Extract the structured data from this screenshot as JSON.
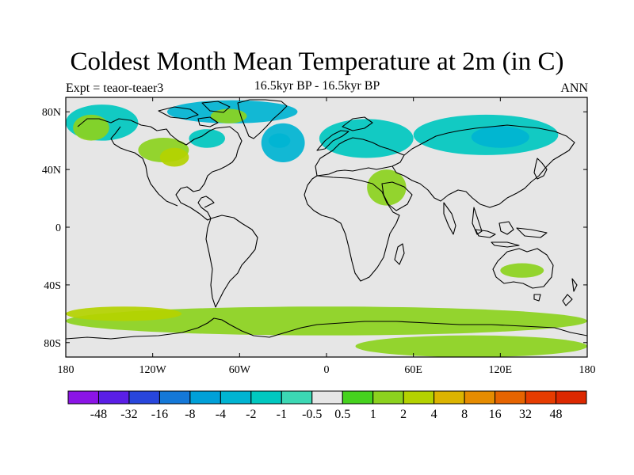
{
  "title": "Coldest Month Mean Temperature at 2m (in C)",
  "subtitle": "16.5kyr BP - 16.5kyr BP",
  "left_label": "Expt = teaor-teaer3",
  "right_label": "ANN",
  "map": {
    "lon_range": [
      -180,
      180
    ],
    "lat_range": [
      -90,
      90
    ],
    "background_color": "#e6e6e6",
    "x_ticks": [
      {
        "lon": -180,
        "label": "180"
      },
      {
        "lon": -120,
        "label": "120W"
      },
      {
        "lon": -60,
        "label": "60W"
      },
      {
        "lon": 0,
        "label": "0"
      },
      {
        "lon": 60,
        "label": "60E"
      },
      {
        "lon": 120,
        "label": "120E"
      },
      {
        "lon": 180,
        "label": "180"
      }
    ],
    "y_ticks": [
      {
        "lat": 80,
        "label": "80N"
      },
      {
        "lat": 40,
        "label": "40N"
      },
      {
        "lat": 0,
        "label": "0"
      },
      {
        "lat": -40,
        "label": "40S"
      },
      {
        "lat": -80,
        "label": "80S"
      }
    ]
  },
  "colorbar": {
    "labels": [
      "-48",
      "-32",
      "-16",
      "-8",
      "-4",
      "-2",
      "-1",
      "-0.5",
      "0.5",
      "1",
      "2",
      "4",
      "8",
      "16",
      "32",
      "48"
    ],
    "colors": [
      "#8b14e6",
      "#5a1ee6",
      "#2846dc",
      "#1478d8",
      "#00a0d8",
      "#00b4d2",
      "#00c8c0",
      "#3cd8b4",
      "#e6e6e6",
      "#46d21e",
      "#8cd21e",
      "#b4d200",
      "#dcb400",
      "#e68c00",
      "#e66400",
      "#e63c00",
      "#dc2800"
    ]
  },
  "chart_data": {
    "type": "heatmap",
    "title": "Coldest Month Mean Temperature at 2m (in C)",
    "subtitle": "16.5kyr BP - 16.5kyr BP",
    "xlim": [
      -180,
      180
    ],
    "ylim": [
      -90,
      90
    ],
    "levels": [
      -48,
      -32,
      -16,
      -8,
      -4,
      -2,
      -1,
      -0.5,
      0.5,
      1,
      2,
      4,
      8,
      16,
      32,
      48
    ],
    "regions": [
      {
        "name": "north-canada-cool",
        "lon": [
          -180,
          -130
        ],
        "lat": [
          60,
          85
        ],
        "value": -1.5
      },
      {
        "name": "alaska-warm",
        "lon": [
          -175,
          -150
        ],
        "lat": [
          60,
          78
        ],
        "value": 1.5
      },
      {
        "name": "canada-warm",
        "lon": [
          -130,
          -95
        ],
        "lat": [
          45,
          62
        ],
        "value": 1.5
      },
      {
        "name": "canada-warm-2",
        "lon": [
          -115,
          -95
        ],
        "lat": [
          42,
          55
        ],
        "value": 3
      },
      {
        "name": "arctic-cool",
        "lon": [
          -110,
          -20
        ],
        "lat": [
          72,
          88
        ],
        "value": -2
      },
      {
        "name": "baffin-warm",
        "lon": [
          -80,
          -55
        ],
        "lat": [
          72,
          82
        ],
        "value": 1.5
      },
      {
        "name": "hudson-cool",
        "lon": [
          -95,
          -70
        ],
        "lat": [
          55,
          68
        ],
        "value": -1.5
      },
      {
        "name": "greenland-east-cool",
        "lon": [
          -45,
          -15
        ],
        "lat": [
          45,
          72
        ],
        "value": -2
      },
      {
        "name": "greenland-east-cool-2",
        "lon": [
          -40,
          -25
        ],
        "lat": [
          55,
          65
        ],
        "value": -3
      },
      {
        "name": "europe-cool",
        "lon": [
          -5,
          60
        ],
        "lat": [
          48,
          75
        ],
        "value": -1.5
      },
      {
        "name": "siberia-cool",
        "lon": [
          60,
          160
        ],
        "lat": [
          50,
          78
        ],
        "value": -1.5
      },
      {
        "name": "siberia-cool-2",
        "lon": [
          100,
          140
        ],
        "lat": [
          55,
          70
        ],
        "value": -3
      },
      {
        "name": "middle-east-warm",
        "lon": [
          28,
          55
        ],
        "lat": [
          15,
          40
        ],
        "value": 1.5
      },
      {
        "name": "australia-warm",
        "lon": [
          120,
          150
        ],
        "lat": [
          -35,
          -25
        ],
        "value": 1.5
      },
      {
        "name": "southern-ocean-warm",
        "lon": [
          -180,
          180
        ],
        "lat": [
          -75,
          -55
        ],
        "value": 1.5
      },
      {
        "name": "southern-ocean-warm-2",
        "lon": [
          -180,
          -100
        ],
        "lat": [
          -65,
          -55
        ],
        "value": 3
      },
      {
        "name": "antarctica-warm",
        "lon": [
          20,
          180
        ],
        "lat": [
          -90,
          -75
        ],
        "value": 1.5
      }
    ]
  }
}
